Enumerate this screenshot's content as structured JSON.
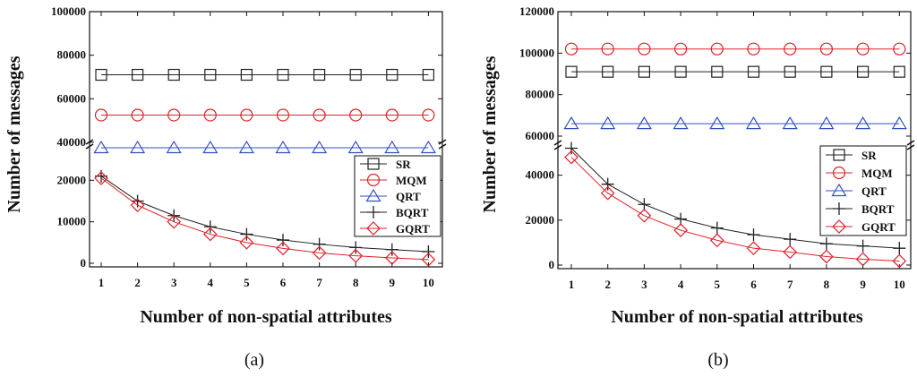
{
  "colors": {
    "SR": "#222222",
    "MQM": "#e0202a",
    "QRT": "#3050c0",
    "BQRT": "#222222",
    "GQRT": "#e0202a"
  },
  "chart_data": [
    {
      "type": "line",
      "panel_label": "(a)",
      "xlabel": "Number of  non-spatial attributes",
      "ylabel": "Number of messages",
      "x": [
        1,
        2,
        3,
        4,
        5,
        6,
        7,
        8,
        9,
        10
      ],
      "ylim": [
        0,
        100000
      ],
      "axis_break": true,
      "lower_ticks": [
        "0",
        "10000",
        "20000"
      ],
      "upper_ticks": [
        "40000",
        "60000",
        "80000",
        "100000"
      ],
      "legend_position": "bottom-right",
      "series": [
        {
          "name": "SR",
          "marker": "square",
          "values": [
            71000,
            71000,
            71000,
            71000,
            71000,
            71000,
            71000,
            71000,
            71000,
            71000
          ]
        },
        {
          "name": "MQM",
          "marker": "circle",
          "values": [
            52500,
            52500,
            52500,
            52500,
            52500,
            52500,
            52500,
            52500,
            52500,
            52500
          ]
        },
        {
          "name": "QRT",
          "marker": "triangle",
          "values": [
            37500,
            37500,
            37500,
            37500,
            37500,
            37500,
            37500,
            37500,
            37500,
            37500
          ]
        },
        {
          "name": "BQRT",
          "marker": "plus",
          "values": [
            21000,
            15000,
            11500,
            8800,
            7000,
            5600,
            4600,
            3800,
            3300,
            2800
          ]
        },
        {
          "name": "GQRT",
          "marker": "diamond",
          "values": [
            20500,
            14000,
            10000,
            7000,
            5000,
            3600,
            2500,
            1800,
            1300,
            900
          ]
        }
      ]
    },
    {
      "type": "line",
      "panel_label": "(b)",
      "xlabel": "Number of  non-spatial attributes",
      "ylabel": "Number of messages",
      "x": [
        1,
        2,
        3,
        4,
        5,
        6,
        7,
        8,
        9,
        10
      ],
      "ylim": [
        0,
        120000
      ],
      "axis_break": true,
      "lower_ticks": [
        "0",
        "20000",
        "40000"
      ],
      "upper_ticks": [
        "60000",
        "80000",
        "100000",
        "120000"
      ],
      "legend_position": "bottom-right",
      "series": [
        {
          "name": "SR",
          "marker": "square",
          "values": [
            91000,
            91000,
            91000,
            91000,
            91000,
            91000,
            91000,
            91000,
            91000,
            91000
          ]
        },
        {
          "name": "MQM",
          "marker": "circle",
          "values": [
            102000,
            102000,
            102000,
            102000,
            102000,
            102000,
            102000,
            102000,
            102000,
            102000
          ]
        },
        {
          "name": "QRT",
          "marker": "triangle",
          "values": [
            66000,
            66000,
            66000,
            66000,
            66000,
            66000,
            66000,
            66000,
            66000,
            66000
          ]
        },
        {
          "name": "BQRT",
          "marker": "plus",
          "values": [
            52000,
            36000,
            27000,
            20500,
            16500,
            13500,
            11500,
            9500,
            8500,
            7500
          ]
        },
        {
          "name": "GQRT",
          "marker": "diamond",
          "values": [
            48000,
            32000,
            22000,
            15500,
            11000,
            7500,
            5800,
            3800,
            2600,
            1800
          ]
        }
      ]
    }
  ]
}
